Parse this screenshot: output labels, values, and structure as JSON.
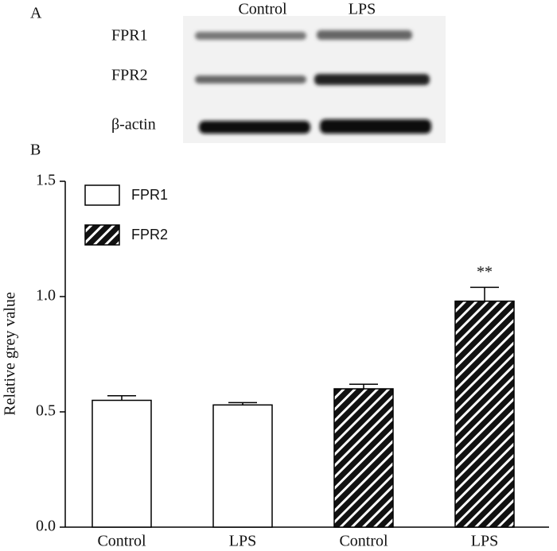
{
  "panel_a": {
    "label": "A",
    "columns": [
      "Control",
      "LPS"
    ],
    "rows": [
      "FPR1",
      "FPR2",
      "β-actin"
    ]
  },
  "chart_data": {
    "type": "bar",
    "panel_label": "B",
    "categories": [
      "Control",
      "LPS",
      "Control",
      "LPS"
    ],
    "series": [
      {
        "name": "FPR1",
        "color": "#ffffff",
        "hatch": false,
        "values": [
          0.55,
          0.53,
          null,
          null
        ],
        "errors": [
          0.02,
          0.01,
          null,
          null
        ]
      },
      {
        "name": "FPR2",
        "color": "#000000",
        "hatch": true,
        "values": [
          null,
          null,
          0.6,
          0.98
        ],
        "errors": [
          null,
          null,
          0.02,
          0.06
        ]
      }
    ],
    "ylabel": "Relative grey value",
    "ylim": [
      0,
      1.5
    ],
    "yticks": [
      {
        "value": 0,
        "label": "0.0"
      },
      {
        "value": 0.5,
        "label": "0.5"
      },
      {
        "value": 1,
        "label": "1.0"
      },
      {
        "value": 1.5,
        "label": "1.5"
      }
    ],
    "annotations": [
      {
        "text": "**",
        "index": 3
      }
    ],
    "legend": "top-left"
  }
}
